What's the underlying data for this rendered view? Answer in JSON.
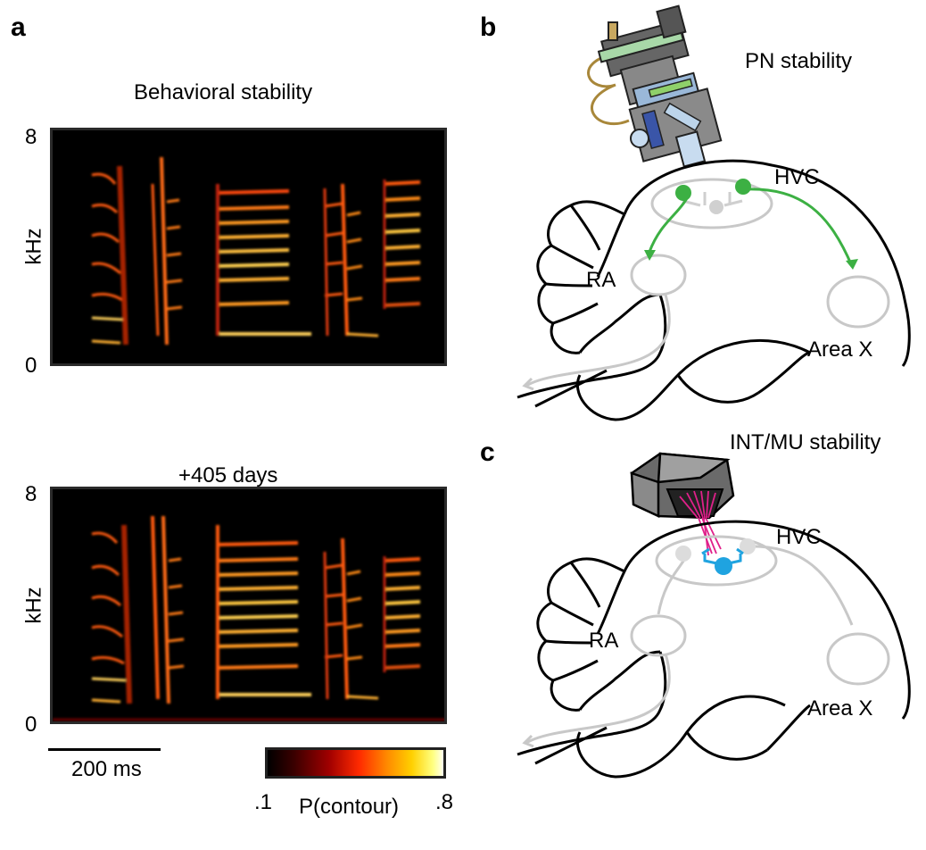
{
  "panels": {
    "a": {
      "letter": "a",
      "top_title": "Behavioral stability",
      "bottom_title": "+405 days",
      "y_top_tick": "8",
      "y_bottom_tick": "0",
      "y_label": "kHz",
      "scale_bar": "200 ms",
      "colorbar": {
        "label": "P(contour)",
        "min": ".1",
        "max": ".8"
      }
    },
    "b": {
      "letter": "b",
      "title": "PN stability",
      "labels": {
        "hvc": "HVC",
        "ra": "RA",
        "areax": "Area X"
      }
    },
    "c": {
      "letter": "c",
      "title": "INT/MU stability",
      "labels": {
        "hvc": "HVC",
        "ra": "RA",
        "areax": "Area X"
      }
    }
  },
  "colors": {
    "pn_neuron": "#3cb043",
    "interneuron": "#1fa3e0",
    "electrode_fibers": "#e0208a",
    "pathway_gray": "#c8c8c8"
  },
  "icons": [
    "microscope-icon",
    "electrode-array-icon",
    "bird-brain-icon"
  ]
}
